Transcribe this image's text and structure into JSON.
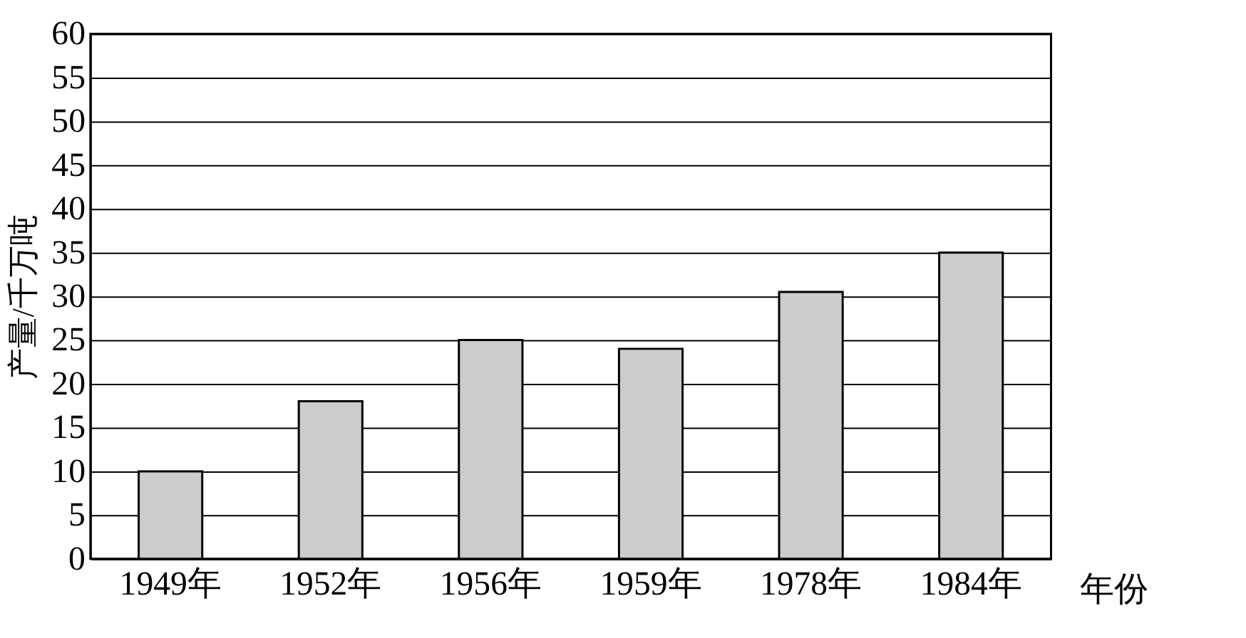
{
  "chart_data": {
    "type": "bar",
    "xlabel": "年份",
    "ylabel": "产量/千万吨",
    "categories": [
      "1949年",
      "1952年",
      "1956年",
      "1959年",
      "1978年",
      "1984年"
    ],
    "values": [
      10,
      18,
      25,
      24,
      30.5,
      35
    ],
    "color": "#cccccc",
    "ylim": [
      0,
      60
    ],
    "yticks": [
      0,
      5,
      10,
      15,
      20,
      25,
      30,
      35,
      40,
      45,
      50,
      55,
      60
    ],
    "grid": "y"
  }
}
